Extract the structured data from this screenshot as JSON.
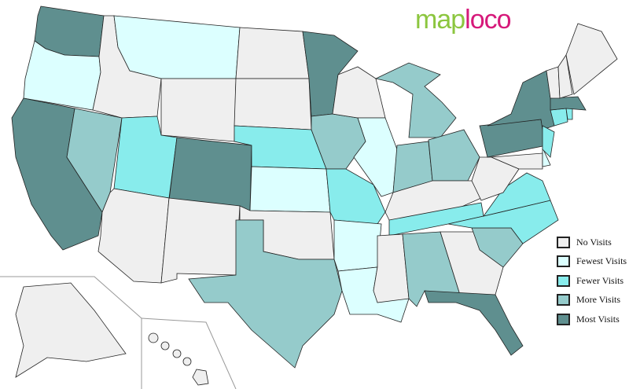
{
  "logo": {
    "part1": "map",
    "part2": "loco"
  },
  "legend": [
    {
      "key": "none",
      "label": "No Visits",
      "color": "#efefef"
    },
    {
      "key": "fewest",
      "label": "Fewest Visits",
      "color": "#dcffff"
    },
    {
      "key": "fewer",
      "label": "Fewer Visits",
      "color": "#88ecec"
    },
    {
      "key": "more",
      "label": "More Visits",
      "color": "#95cbcb"
    },
    {
      "key": "most",
      "label": "Most Visits",
      "color": "#5f8f8f"
    }
  ],
  "states": {
    "WA": "most",
    "OR": "fewest",
    "CA": "most",
    "NV": "more",
    "ID": "none",
    "MT": "fewest",
    "WY": "none",
    "UT": "fewer",
    "CO": "most",
    "AZ": "none",
    "NM": "none",
    "ND": "none",
    "SD": "none",
    "NE": "fewer",
    "KS": "fewest",
    "OK": "none",
    "TX": "more",
    "MN": "most",
    "IA": "more",
    "MO": "fewer",
    "AR": "fewest",
    "LA": "fewest",
    "WI": "none",
    "IL": "fewest",
    "MI": "more",
    "IN": "more",
    "OH": "more",
    "KY": "none",
    "TN": "fewer",
    "MS": "none",
    "AL": "more",
    "GA": "none",
    "FL": "most",
    "SC": "more",
    "NC": "fewer",
    "VA": "fewer",
    "WV": "none",
    "PA": "most",
    "NY": "most",
    "MD": "none",
    "DE": "fewest",
    "NJ": "fewer",
    "CT": "fewer",
    "RI": "fewer",
    "MA": "most",
    "VT": "none",
    "NH": "none",
    "ME": "none",
    "AK": "none",
    "HI": "none"
  }
}
